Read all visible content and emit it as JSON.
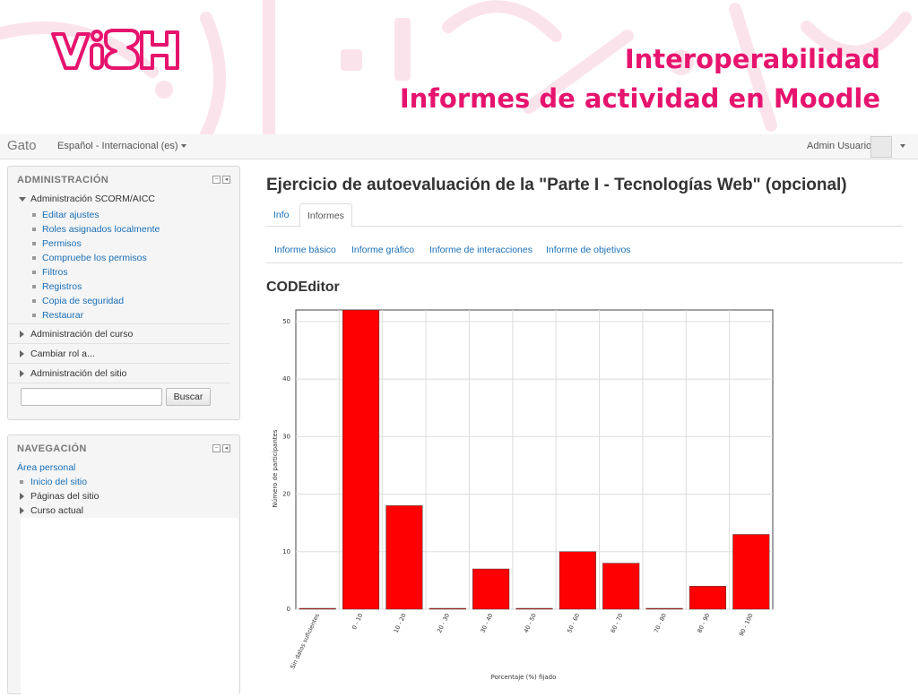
{
  "slide": {
    "logo_text": "ViSH",
    "title_line1": "Interoperabilidad",
    "title_line2": "Informes de actividad en Moodle",
    "accent_color": "#e6146e"
  },
  "navbar": {
    "brand": "Gato",
    "language": "Español - Internacional (es)",
    "user": "Admin Usuario"
  },
  "admin_block": {
    "title": "ADMINISTRACIÓN",
    "scorm_section": "Administración SCORM/AICC",
    "scorm_items": [
      "Editar ajustes",
      "Roles asignados localmente",
      "Permisos",
      "Compruebe los permisos",
      "Filtros",
      "Registros",
      "Copia de seguridad",
      "Restaurar"
    ],
    "course_admin": "Administración del curso",
    "switch_role": "Cambiar rol a...",
    "site_admin": "Administración del sitio",
    "search_button": "Buscar",
    "search_value": ""
  },
  "nav_block": {
    "title": "NAVEGACIÓN",
    "personal_area": "Área personal",
    "site_home": "Inicio del sitio",
    "site_pages": "Páginas del sitio",
    "current_course": "Curso actual"
  },
  "main": {
    "title": "Ejercicio de autoevaluación de la \"Parte I - Tecnologías Web\" (opcional)",
    "tabs": [
      {
        "label": "Info"
      },
      {
        "label": "Informes"
      }
    ],
    "active_tab": "Informes",
    "subtabs": [
      {
        "label": "Informe básico"
      },
      {
        "label": "Informe gráfico"
      },
      {
        "label": "Informe de interacciones"
      },
      {
        "label": "Informe de objetivos"
      }
    ],
    "section_heading": "CODEditor"
  },
  "chart_data": {
    "type": "bar",
    "categories": [
      "Sin datos suficientes",
      "0 - 10",
      "10 - 20",
      "20 - 30",
      "30 - 40",
      "40 - 50",
      "50 - 60",
      "60 - 70",
      "70 - 80",
      "80 - 90",
      "90 - 100"
    ],
    "values": [
      0,
      52,
      18,
      0,
      7,
      0,
      10,
      8,
      0,
      4,
      13
    ],
    "xlabel": "Porcentaje (%) fijado",
    "ylabel": "Número de participantes",
    "ylim": [
      0,
      52
    ],
    "yticks": [
      0,
      10,
      20,
      30,
      40,
      50
    ],
    "grid": true,
    "bar_color": "#ff0000"
  }
}
